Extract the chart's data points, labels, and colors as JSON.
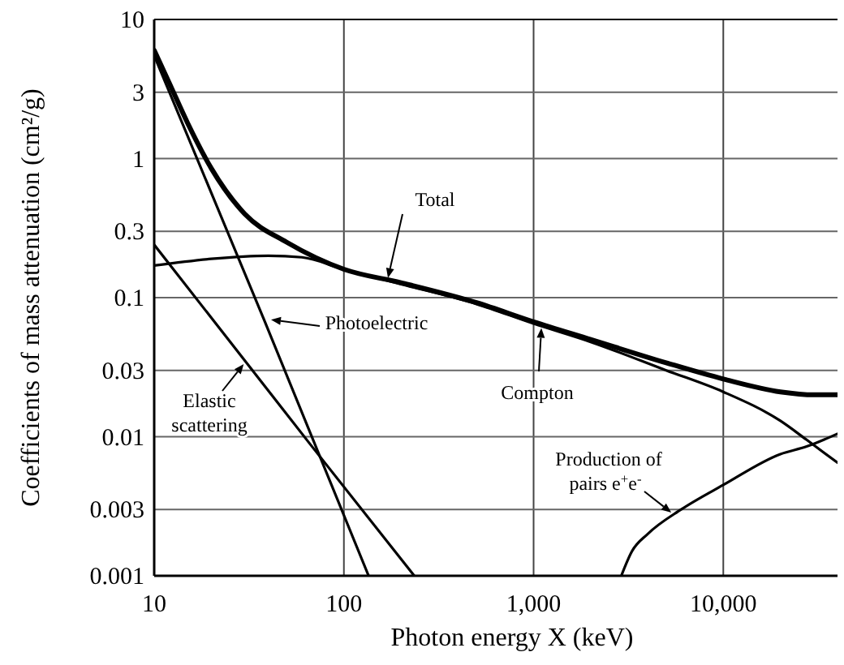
{
  "chart_data": {
    "type": "line",
    "xlabel": "Photon energy X (keV)",
    "ylabel": "Coefficients of mass attenuation (cm²/g)",
    "log": "xy",
    "grid": true,
    "marker": "none",
    "line_style": "solid",
    "xlim": [
      10,
      40000
    ],
    "xticks": [
      10,
      100,
      {
        "value": 1000,
        "label": "1,000"
      },
      {
        "value": 10000,
        "label": "10,000"
      }
    ],
    "ylim": [
      0.001,
      10
    ],
    "yticks": [
      0.001,
      0.003,
      0.01,
      0.03,
      0.1,
      0.3,
      1,
      3,
      10
    ],
    "annotations": [
      {
        "text": "Total",
        "x": 170,
        "y": 0.135
      },
      {
        "text": "Compton",
        "x": 1100,
        "y": 0.062
      },
      "Photoelectric",
      {
        "text": "Elastic scattering",
        "x": 30,
        "y": 0.034
      },
      {
        "text": "Production of pairs e$^{+}$e$^{-}$",
        "x": 5400,
        "y": 0.0028
      }
    ],
    "series": [
      {
        "color": "#000000",
        "x": [
          10,
          12,
          15,
          20,
          30,
          50,
          100,
          200,
          500,
          1000,
          2000,
          5000,
          10000,
          20000,
          30000,
          40000
        ],
        "values": [
          6,
          3.5,
          1.8,
          0.85,
          0.4,
          0.25,
          0.16,
          0.128,
          0.092,
          0.067,
          0.05,
          0.034,
          0.026,
          0.021,
          0.02,
          0.02
        ]
      },
      {
        "color": "#000000",
        "x": [
          10,
          20,
          40,
          60,
          100,
          200,
          500,
          1000,
          2000,
          5000,
          10000,
          20000,
          27500,
          40000
        ],
        "values": [
          0.17,
          0.19,
          0.2,
          0.195,
          0.16,
          0.125,
          0.09,
          0.065,
          0.048,
          0.03,
          0.021,
          0.013,
          0.0095,
          0.0065
        ]
      },
      {
        "color": "#000000",
        "x": [
          10,
          38,
          135
        ],
        "values": [
          5.5,
          0.069,
          0.001
        ]
      },
      {
        "color": "#000000",
        "x": [
          10,
          67,
          235
        ],
        "values": [
          0.24,
          0.0087,
          0.001
        ]
      },
      {
        "color": "#000000",
        "x": [
          2900,
          3300,
          4000,
          6000,
          10000,
          20000,
          27500,
          40000
        ],
        "values": [
          0.001,
          0.0015,
          0.002,
          0.003,
          0.0045,
          0.0075,
          0.0085,
          0.0105
        ]
      }
    ]
  }
}
